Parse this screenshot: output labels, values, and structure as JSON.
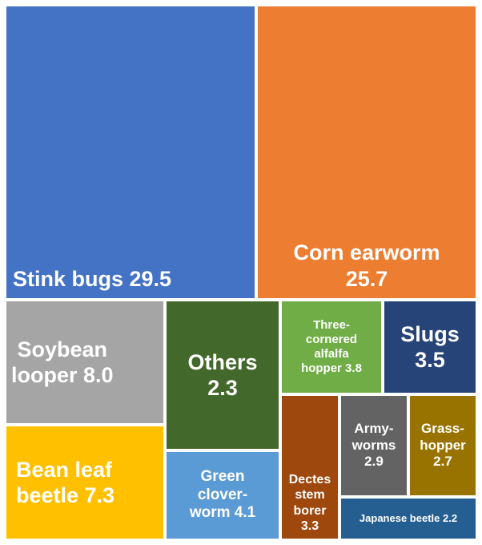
{
  "chart_data": {
    "type": "treemap",
    "items": [
      {
        "id": "stink-bugs",
        "label_lines": [
          "Stink bugs 29.5"
        ],
        "name": "Stink bugs",
        "value": 29.5,
        "color": "#4472C4"
      },
      {
        "id": "corn-earworm",
        "label_lines": [
          "Corn earworm",
          "25.7"
        ],
        "name": "Corn earworm",
        "value": 25.7,
        "color": "#ED7D31"
      },
      {
        "id": "soybean-looper",
        "label_lines": [
          "Soybean",
          "looper 8.0"
        ],
        "name": "Soybean looper",
        "value": 8.0,
        "color": "#A5A5A5"
      },
      {
        "id": "bean-leaf-beetle",
        "label_lines": [
          "Bean leaf",
          "beetle 7.3"
        ],
        "name": "Bean leaf beetle",
        "value": 7.3,
        "color": "#FFC000"
      },
      {
        "id": "others",
        "label_lines": [
          "Others",
          "2.3"
        ],
        "name": "Others",
        "value": 2.3,
        "color": "#43682B"
      },
      {
        "id": "green-cloverworm",
        "label_lines": [
          "Green",
          "clover-",
          "worm 4.1"
        ],
        "name": "Green cloverworm",
        "value": 4.1,
        "color": "#5B9BD5"
      },
      {
        "id": "three-cornered-alfalfa-hopper",
        "label_lines": [
          "Three-",
          "cornered",
          "alfalfa",
          "hopper 3.8"
        ],
        "name": "Three-cornered alfalfa hopper",
        "value": 3.8,
        "color": "#70AD47"
      },
      {
        "id": "slugs",
        "label_lines": [
          "Slugs",
          "3.5"
        ],
        "name": "Slugs",
        "value": 3.5,
        "color": "#264478"
      },
      {
        "id": "dectes-stem-borer",
        "label_lines": [
          "Dectes",
          "stem",
          "borer",
          "3.3"
        ],
        "name": "Dectes stem borer",
        "value": 3.3,
        "color": "#9E480E"
      },
      {
        "id": "armyworms",
        "label_lines": [
          "Army-",
          "worms",
          "2.9"
        ],
        "name": "Armyworms",
        "value": 2.9,
        "color": "#636363"
      },
      {
        "id": "grasshopper",
        "label_lines": [
          "Grass-",
          "hopper",
          "2.7"
        ],
        "name": "Grasshopper",
        "value": 2.7,
        "color": "#997300"
      },
      {
        "id": "japanese-beetle",
        "label_lines": [
          "Japanese beetle 2.2"
        ],
        "name": "Japanese beetle",
        "value": 2.2,
        "color": "#255E91"
      }
    ]
  }
}
